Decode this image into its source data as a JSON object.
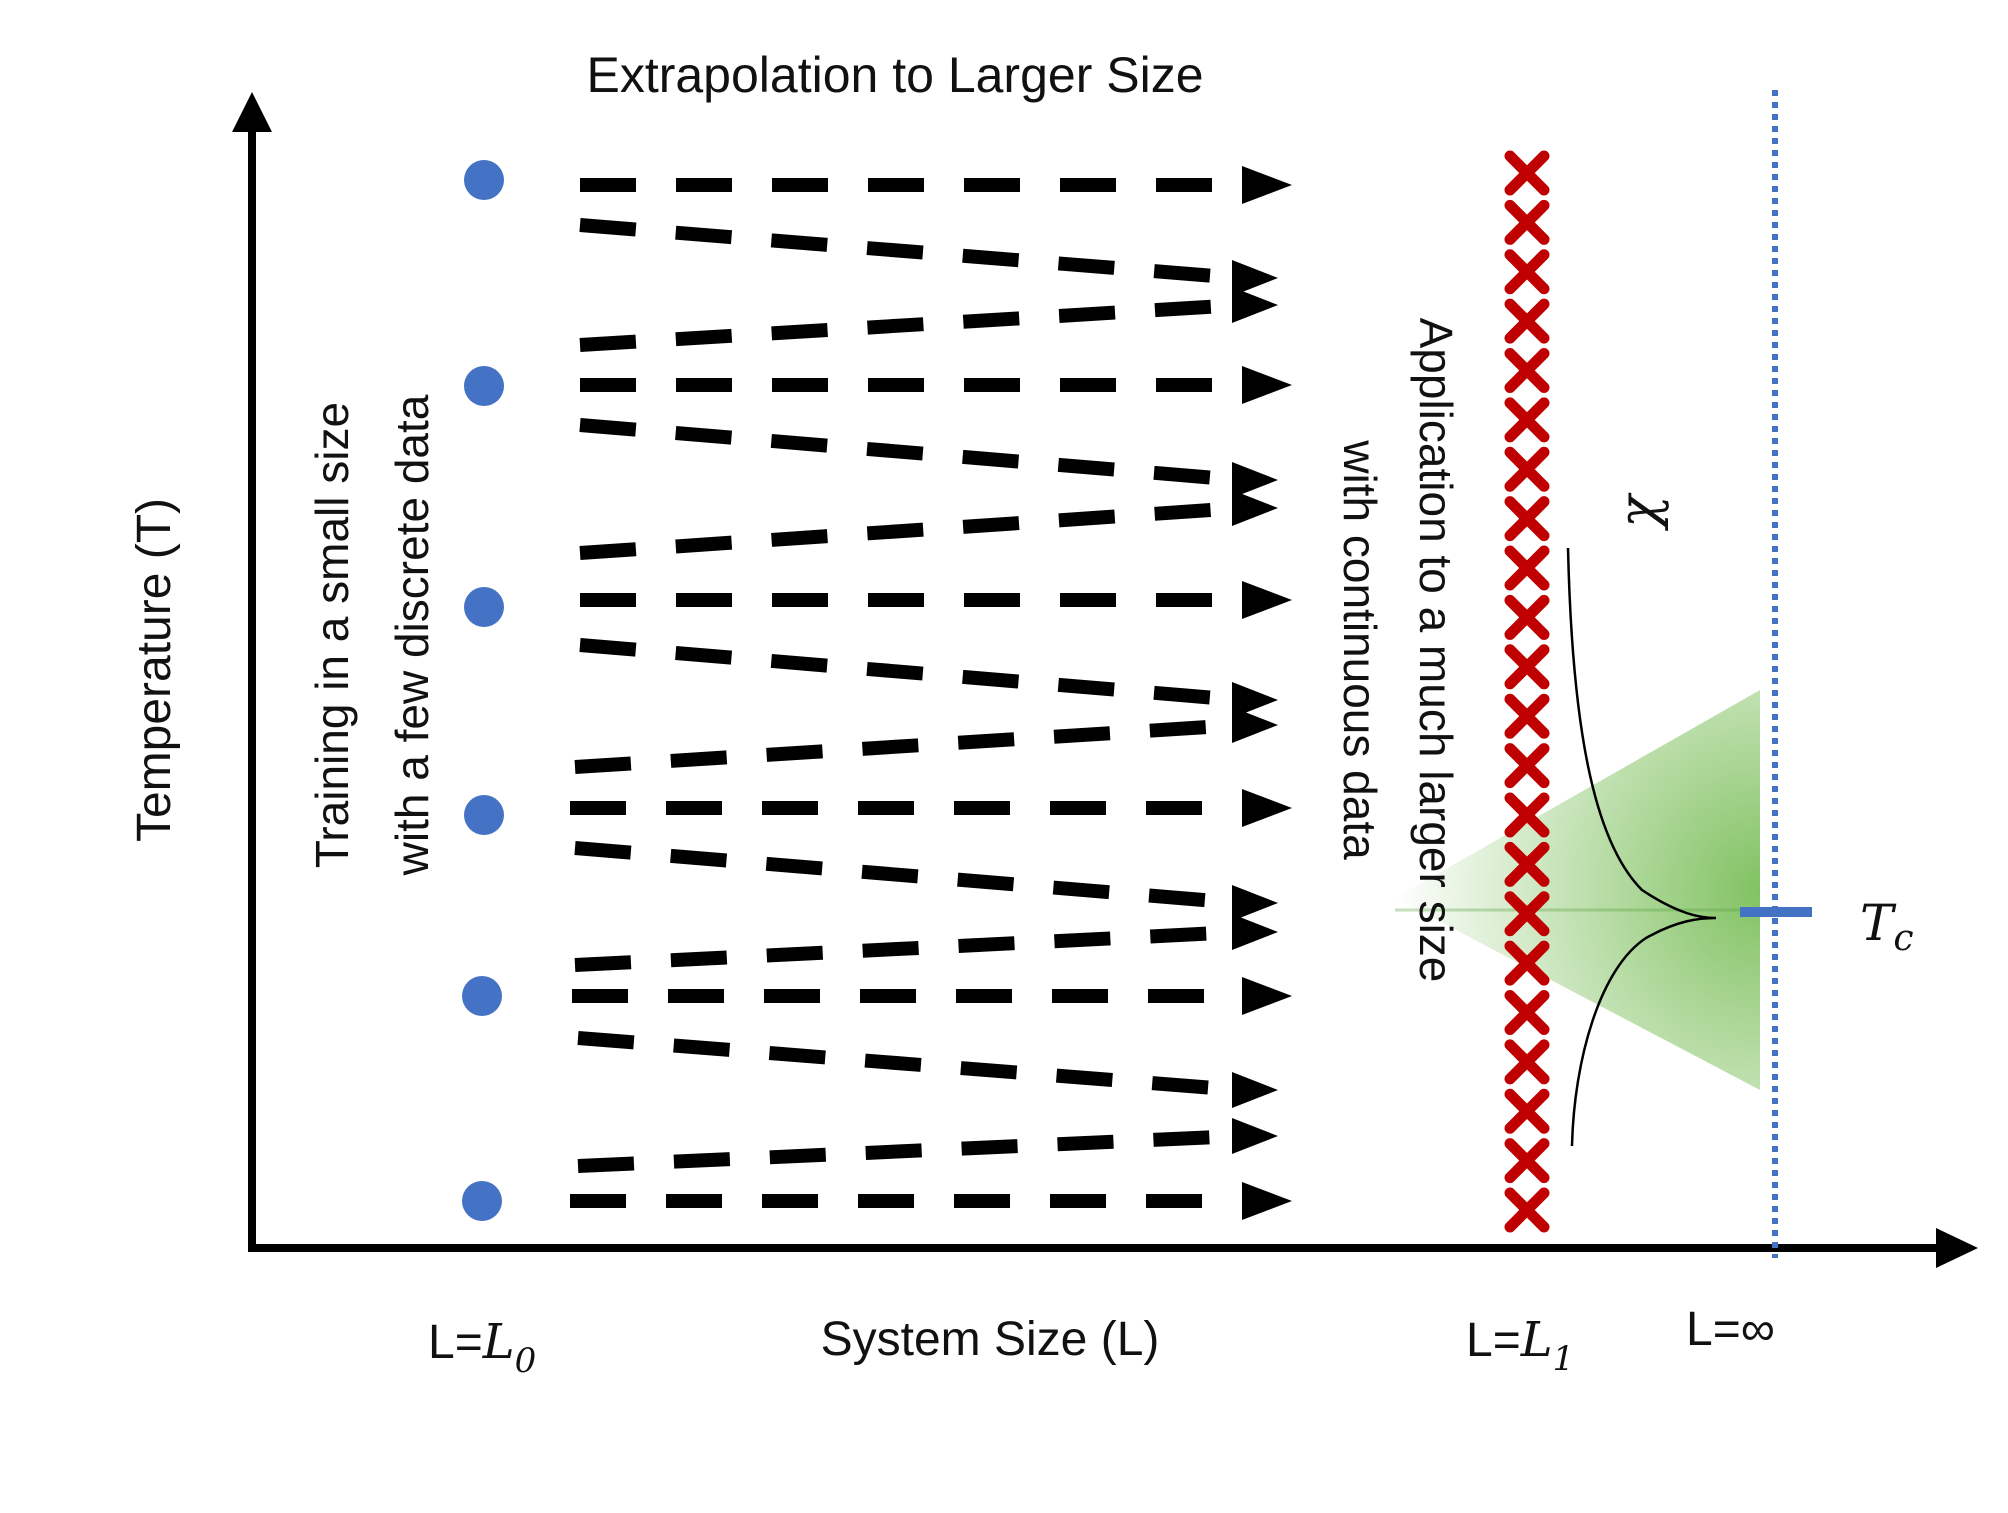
{
  "title": "Extrapolation to Larger Size",
  "axes": {
    "y_label": "Temperature (T)",
    "x_label": "System Size (L)"
  },
  "x_ticks": {
    "l0_prefix": "L=",
    "l0_var": "L",
    "l0_sub": "0",
    "l1_prefix": "L=",
    "l1_var": "L",
    "l1_sub": "1",
    "linf": "L=∞"
  },
  "training_text": {
    "line1": "Training in a small size",
    "line2": "with a few discrete data"
  },
  "application_text": {
    "line1": "Application to a much larger size",
    "line2": "with continuous data"
  },
  "chi_symbol": "χ",
  "tc": {
    "var": "T",
    "sub": "c"
  },
  "colors": {
    "training_dot": "#4472c4",
    "application_marker": "#c00000",
    "critical_band": "#7bbf5a",
    "infinite_line": "#4472c4",
    "arrow": "#000000"
  },
  "training_points_count": 6,
  "extrapolation_arrows_count": 16,
  "application_markers_count": 22
}
